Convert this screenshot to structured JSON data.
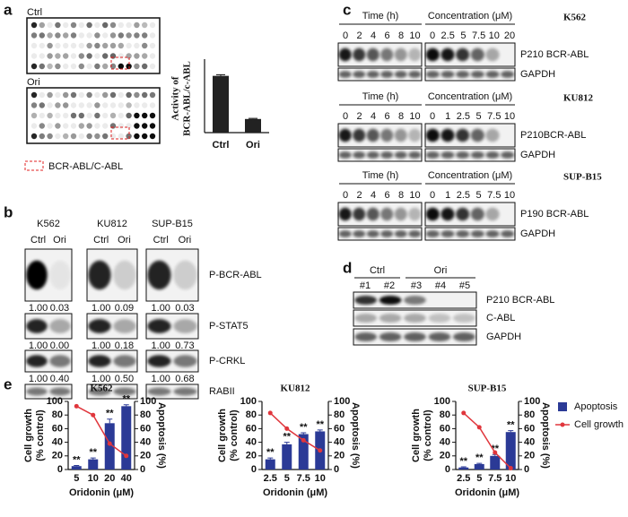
{
  "panel_labels": [
    "a",
    "b",
    "c",
    "d",
    "e"
  ],
  "panel_a": {
    "arrays": [
      "Ctrl",
      "Ori"
    ],
    "legend": "BCR-ABL/C-ABL"
  },
  "panel_b": {
    "cell_lines": [
      {
        "name": "K562",
        "lanes": [
          "Ctrl",
          "Ori"
        ]
      },
      {
        "name": "KU812",
        "lanes": [
          "Ctrl",
          "Ori"
        ]
      },
      {
        "name": "SUP-B15",
        "lanes": [
          "Ctrl",
          "Ori"
        ]
      }
    ],
    "rows": [
      "P-BCR-ABL",
      "P-STAT5",
      "P-CRKL",
      "RABII"
    ],
    "quantification": [
      [
        [
          "1.00",
          "0.03"
        ],
        [
          "1.00",
          "0.09"
        ],
        [
          "1.00",
          "0.03"
        ]
      ],
      [
        [
          "1.00",
          "0.00"
        ],
        [
          "1.00",
          "0.18"
        ],
        [
          "1.00",
          "0.73"
        ]
      ],
      [
        [
          "1.00",
          "0.40"
        ],
        [
          "1.00",
          "0.50"
        ],
        [
          "1.00",
          "0.68"
        ]
      ]
    ]
  },
  "panel_c": {
    "blocks": [
      {
        "cell_line": "K562",
        "time_header": "Time (h)",
        "time_lanes": [
          "0",
          "2",
          "4",
          "6",
          "8",
          "10"
        ],
        "conc_header": "Concentration (μM)",
        "conc_lanes": [
          "0",
          "2.5",
          "5",
          "7.5",
          "10",
          "20"
        ],
        "bands": [
          "P210 BCR-ABL",
          "GAPDH"
        ]
      },
      {
        "cell_line": "KU812",
        "time_header": "Time (h)",
        "time_lanes": [
          "0",
          "2",
          "4",
          "6",
          "8",
          "10"
        ],
        "conc_header": "Concentration (μM)",
        "conc_lanes": [
          "0",
          "1",
          "2.5",
          "5",
          "7.5",
          "10"
        ],
        "bands": [
          "P210BCR-ABL",
          "GAPDH"
        ]
      },
      {
        "cell_line": "SUP-B15",
        "time_header": "Time (h)",
        "time_lanes": [
          "0",
          "2",
          "4",
          "6",
          "8",
          "10"
        ],
        "conc_header": "Concentration (μM)",
        "conc_lanes": [
          "0",
          "1",
          "2.5",
          "5",
          "7.5",
          "10"
        ],
        "bands": [
          "P190 BCR-ABL",
          "GAPDH"
        ]
      }
    ]
  },
  "panel_d": {
    "groups": [
      {
        "name": "Ctrl",
        "lanes": [
          "#1",
          "#2"
        ]
      },
      {
        "name": "Ori",
        "lanes": [
          "#3",
          "#4",
          "#5"
        ]
      }
    ],
    "bands": [
      "P210 BCR-ABL",
      "C-ABL",
      "GAPDH"
    ]
  },
  "chart_data": [
    {
      "type": "bar",
      "categories": [
        "Ctrl",
        "Ori"
      ],
      "values": [
        100,
        24
      ],
      "errors": [
        2,
        1
      ],
      "color": "#222222",
      "ylim": [
        0,
        120
      ],
      "ylabel": [
        "Activity of",
        "BCR-ABL/c-ABL"
      ]
    },
    {
      "type": "combo",
      "title": "K562",
      "categories": [
        "5",
        "10",
        "20",
        "40"
      ],
      "xlabel": "Oridonin (μM)",
      "ylabel": [
        "Cell growth",
        "(% control)"
      ],
      "y2label": "Apoptosis (%)",
      "ylim": [
        0,
        100
      ],
      "yticks": [
        0,
        20,
        40,
        60,
        80,
        100
      ],
      "y2lim": [
        0,
        100
      ],
      "y2ticks": [
        0,
        20,
        40,
        60,
        80,
        100
      ],
      "series": [
        {
          "kind": "bar",
          "color": "#2b3a96",
          "axis": "y2",
          "values": [
            5,
            15,
            68,
            93
          ],
          "errors": [
            1,
            2,
            6,
            2
          ],
          "value_labels": [
            "**",
            "**",
            "**",
            "**"
          ]
        },
        {
          "kind": "line",
          "color": "#e0363c",
          "values": [
            93,
            80,
            38,
            20
          ]
        }
      ]
    },
    {
      "type": "combo",
      "title": "KU812",
      "categories": [
        "2.5",
        "5",
        "7.5",
        "10"
      ],
      "xlabel": "Oridonin (μM)",
      "ylabel": [
        "Cell growth",
        "(% control)"
      ],
      "y2label": "Apoptosis (%)",
      "ylim": [
        0,
        100
      ],
      "yticks": [
        0,
        20,
        40,
        60,
        80,
        100
      ],
      "y2lim": [
        0,
        100
      ],
      "y2ticks": [
        0,
        20,
        40,
        60,
        80,
        100
      ],
      "series": [
        {
          "kind": "bar",
          "color": "#2b3a96",
          "axis": "y2",
          "values": [
            15,
            37,
            52,
            56
          ],
          "errors": [
            2,
            3,
            2,
            2
          ],
          "value_labels": [
            "**",
            "**",
            "**",
            "**"
          ]
        },
        {
          "kind": "line",
          "color": "#e0363c",
          "values": [
            83,
            60,
            43,
            28
          ]
        }
      ]
    },
    {
      "type": "combo",
      "title": "SUP-B15",
      "categories": [
        "2.5",
        "5",
        "7.5",
        "10"
      ],
      "xlabel": "Oridonin (μM)",
      "ylabel": [
        "Cell growth",
        "(% control)"
      ],
      "y2label": "Apoptosis (%)",
      "ylim": [
        0,
        100
      ],
      "yticks": [
        0,
        20,
        40,
        60,
        80,
        100
      ],
      "y2lim": [
        0,
        100
      ],
      "y2ticks": [
        0,
        20,
        40,
        60,
        80,
        100
      ],
      "legend": "right",
      "series": [
        {
          "name": "Apoptosis",
          "kind": "bar",
          "color": "#2b3a96",
          "axis": "y2",
          "values": [
            3,
            8,
            20,
            55
          ],
          "errors": [
            1,
            1,
            2,
            2
          ],
          "value_labels": [
            "**",
            "**",
            "**",
            "**"
          ]
        },
        {
          "name": "Cell growth",
          "kind": "line",
          "color": "#e0363c",
          "values": [
            83,
            62,
            25,
            2
          ]
        }
      ]
    }
  ]
}
